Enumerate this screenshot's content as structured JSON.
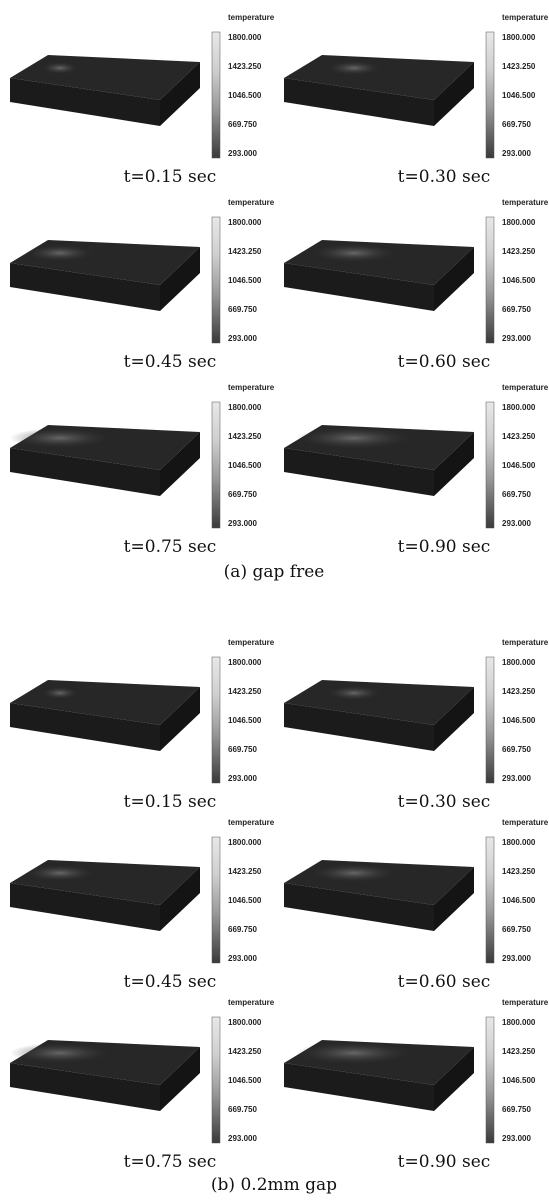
{
  "groups": [
    {
      "caption": "(a) gap free",
      "panels": [
        {
          "time_label": "t=0.15 sec",
          "colorbar": {
            "title": "temperature",
            "labels": [
              "1800.000",
              "1423.250",
              "1046.500",
              "669.750",
              "293.000"
            ]
          }
        },
        {
          "time_label": "t=0.30 sec",
          "colorbar": {
            "title": "temperature",
            "labels": [
              "1800.000",
              "1423.250",
              "1046.500",
              "669.750",
              "293.000"
            ]
          }
        },
        {
          "time_label": "t=0.45 sec",
          "colorbar": {
            "title": "temperature",
            "labels": [
              "1800.000",
              "1423.250",
              "1046.500",
              "669.750",
              "293.000"
            ]
          }
        },
        {
          "time_label": "t=0.60 sec",
          "colorbar": {
            "title": "temperature",
            "labels": [
              "1800.000",
              "1423.250",
              "1046.500",
              "669.750",
              "293.000"
            ]
          }
        },
        {
          "time_label": "t=0.75 sec",
          "colorbar": {
            "title": "temperature",
            "labels": [
              "1800.000",
              "1423.250",
              "1046.500",
              "669.750",
              "293.000"
            ]
          }
        },
        {
          "time_label": "t=0.90 sec",
          "colorbar": {
            "title": "temperature",
            "labels": [
              "1800.000",
              "1423.250",
              "1046.500",
              "669.750",
              "293.000"
            ]
          }
        }
      ]
    },
    {
      "caption": "(b) 0.2mm gap",
      "panels": [
        {
          "time_label": "t=0.15 sec",
          "colorbar": {
            "title": "temperature",
            "labels": [
              "1800.000",
              "1423.250",
              "1046.500",
              "669.750",
              "293.000"
            ]
          }
        },
        {
          "time_label": "t=0.30 sec",
          "colorbar": {
            "title": "temperature",
            "labels": [
              "1800.000",
              "1423.250",
              "1046.500",
              "669.750",
              "293.000"
            ]
          }
        },
        {
          "time_label": "t=0.45 sec",
          "colorbar": {
            "title": "temperature",
            "labels": [
              "1800.000",
              "1423.250",
              "1046.500",
              "669.750",
              "293.000"
            ]
          }
        },
        {
          "time_label": "t=0.60 sec",
          "colorbar": {
            "title": "temperature",
            "labels": [
              "1800.000",
              "1423.250",
              "1046.500",
              "669.750",
              "293.000"
            ]
          }
        },
        {
          "time_label": "t=0.75 sec",
          "colorbar": {
            "title": "temperature",
            "labels": [
              "1800.000",
              "1423.250",
              "1046.500",
              "669.750",
              "293.000"
            ]
          }
        },
        {
          "time_label": "t=0.90 sec",
          "colorbar": {
            "title": "temperature",
            "labels": [
              "1800.000",
              "1423.250",
              "1046.500",
              "669.750",
              "293.000"
            ]
          }
        }
      ]
    }
  ]
}
